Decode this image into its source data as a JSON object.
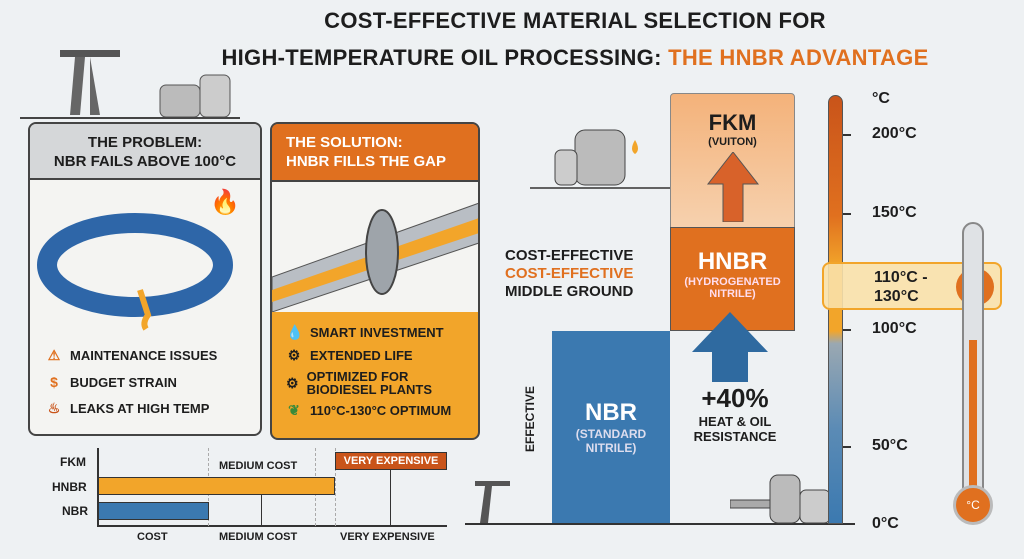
{
  "title": {
    "line1": "COST-EFFECTIVE MATERIAL SELECTION FOR",
    "line2_prefix": "HIGH-TEMPERATURE OIL PROCESSING: ",
    "line2_highlight": "THE HNBR ADVANTAGE"
  },
  "problem": {
    "heading1": "THE PROBLEM:",
    "heading2": "NBR FAILS ABOVE 100°C",
    "items": [
      {
        "icon": "warning-icon",
        "label": "MAINTENANCE ISSUES"
      },
      {
        "icon": "dollar-icon",
        "label": "BUDGET STRAIN"
      },
      {
        "icon": "flame-icon",
        "label": "LEAKS AT HIGH TEMP"
      }
    ]
  },
  "solution": {
    "heading1": "THE SOLUTION:",
    "heading2": "HNBR FILLS THE GAP",
    "items": [
      {
        "icon": "drop-icon",
        "label": "SMART INVESTMENT"
      },
      {
        "icon": "gear-icon",
        "label": "EXTENDED LIFE"
      },
      {
        "icon": "gear-icon",
        "label": "OPTIMIZED FOR BIODIESEL PLANTS"
      },
      {
        "icon": "leaf-icon",
        "label": "110°C-130°C OPTIMUM"
      }
    ]
  },
  "cost_chart": {
    "rows": [
      "FKM",
      "HNBR",
      "NBR"
    ],
    "axis_labels": [
      "COST",
      "MEDIUM COST",
      "VERY EXPENSIVE"
    ],
    "top_label": "MEDIUM COST",
    "fkm_badge": "VERY EXPENSIVE"
  },
  "materials": {
    "fkm": {
      "name": "FKM",
      "sub": "(VUITON)"
    },
    "hnbr": {
      "name": "HNBR",
      "sub": "(HYDROGENATED NITRILE)"
    },
    "nbr": {
      "name": "NBR",
      "sub": "(STANDARD NITRILE)"
    }
  },
  "middle_label": {
    "line1": "COST-EFFECTIVE",
    "line2": "COST-EFFECTIVE",
    "line3": "MIDDLE GROUND"
  },
  "effective_label": "EFFECTIVE",
  "gain": {
    "value": "+40%",
    "line1": "HEAT & OIL",
    "line2": "RESISTANCE"
  },
  "scale": {
    "unit": "°C",
    "labels": [
      "200°C",
      "150°C",
      "100°C",
      "50°C",
      "0°C"
    ],
    "range_line1": "110°C -",
    "range_line2": "130°C"
  },
  "colors": {
    "orange": "#e0701f",
    "amber": "#f2a52a",
    "blue": "#3b79b0",
    "dark_orange": "#c9541a"
  }
}
